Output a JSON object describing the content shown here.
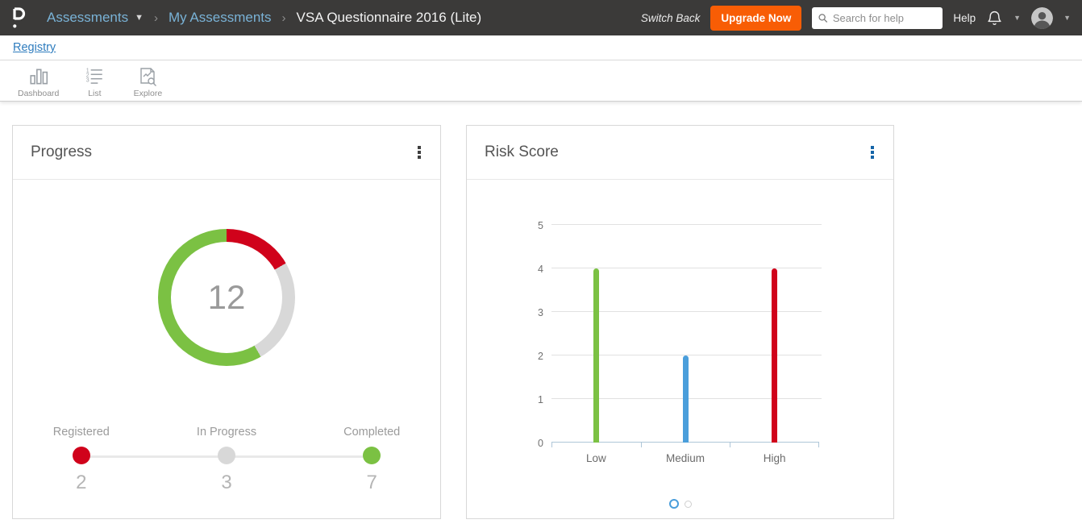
{
  "header": {
    "logo": "P",
    "nav_current": "Assessments",
    "breadcrumb": [
      "My Assessments",
      "VSA Questionnaire 2016 (Lite)"
    ],
    "switch_back": "Switch Back",
    "upgrade_button": "Upgrade Now",
    "search_placeholder": "Search for help",
    "help": "Help"
  },
  "subnav": {
    "registry": "Registry"
  },
  "toolbar": {
    "items": [
      {
        "label": "Dashboard"
      },
      {
        "label": "List"
      },
      {
        "label": "Explore"
      }
    ]
  },
  "progress_card": {
    "title": "Progress"
  },
  "risk_card": {
    "title": "Risk Score"
  },
  "colors": {
    "header_bg": "#3b3a39",
    "accent_orange": "#f85d05",
    "link_blue": "#2e7cbe",
    "green": "#7bc143",
    "red": "#d0021b",
    "blue": "#4a9edb",
    "gray": "#d8d8d8"
  },
  "chart_data": [
    {
      "type": "pie",
      "subtype": "donut",
      "title": "Progress",
      "center_label": "12",
      "total": 12,
      "segments": [
        {
          "label": "Registered",
          "value": 2,
          "color": "#d0021b"
        },
        {
          "label": "In Progress",
          "value": 3,
          "color": "#d8d8d8"
        },
        {
          "label": "Completed",
          "value": 7,
          "color": "#7bc143"
        }
      ],
      "legend_position": "bottom"
    },
    {
      "type": "bar",
      "title": "Risk Score",
      "categories": [
        "Low",
        "Medium",
        "High"
      ],
      "values": [
        4,
        2,
        4
      ],
      "colors": [
        "#7bc143",
        "#4a9edb",
        "#d0021b"
      ],
      "xlabel": "",
      "ylabel": "",
      "ylim": [
        0,
        5
      ],
      "yticks": [
        0,
        1,
        2,
        3,
        4,
        5
      ],
      "grid": true,
      "legend_position": "none"
    }
  ],
  "carousel": {
    "count": 2,
    "active_index": 0
  }
}
